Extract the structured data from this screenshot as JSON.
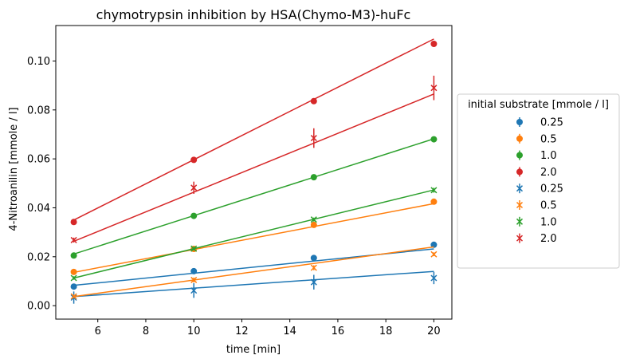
{
  "chart_data": {
    "type": "scatter",
    "title": "chymotrypsin inhibition by HSA(Chymo-M3)-huFc",
    "xlabel": "time [min]",
    "ylabel": "4-Nitroanilin [mmole / l]",
    "xlim": [
      4.25,
      20.75
    ],
    "ylim": [
      -0.0055,
      0.1145
    ],
    "x_ticks": [
      6,
      8,
      10,
      12,
      14,
      16,
      18,
      20
    ],
    "y_ticks": [
      0.0,
      0.02,
      0.04,
      0.06,
      0.08,
      0.1
    ],
    "x_tick_labels": [
      "6",
      "8",
      "10",
      "12",
      "14",
      "16",
      "18",
      "20"
    ],
    "y_tick_labels": [
      "0.00",
      "0.02",
      "0.04",
      "0.06",
      "0.08",
      "0.10"
    ],
    "grid": false,
    "legend": {
      "title": "initial substrate [mmole / l]",
      "placement": "outside-right"
    },
    "x": [
      5,
      10,
      15,
      20
    ],
    "series": [
      {
        "name": "0.25",
        "marker": "circle",
        "color": "#1f77b4",
        "values": [
          0.0078,
          0.0141,
          0.0195,
          0.0249
        ],
        "errors": [
          0.0006,
          0.0005,
          0.0006,
          0.0006
        ],
        "fit": [
          0.0083,
          0.0232
        ]
      },
      {
        "name": "0.5",
        "marker": "circle",
        "color": "#ff7f0e",
        "values": [
          0.0138,
          0.0232,
          0.033,
          0.0425
        ],
        "errors": [
          0.0005,
          0.0005,
          0.0006,
          0.0005
        ],
        "fit": [
          0.0136,
          0.0417
        ]
      },
      {
        "name": "1.0",
        "marker": "circle",
        "color": "#2ca02c",
        "values": [
          0.0205,
          0.0367,
          0.0525,
          0.068
        ],
        "errors": [
          0.0005,
          0.0005,
          0.0006,
          0.0006
        ],
        "fit": [
          0.0211,
          0.0682
        ]
      },
      {
        "name": "2.0",
        "marker": "circle",
        "color": "#d62728",
        "values": [
          0.0342,
          0.0596,
          0.0836,
          0.107
        ],
        "errors": [
          0.0006,
          0.0006,
          0.0006,
          0.0008
        ],
        "fit": [
          0.035,
          0.109
        ]
      },
      {
        "name": "0.25",
        "marker": "x",
        "color": "#1f77b4",
        "values": [
          0.0033,
          0.0062,
          0.0096,
          0.0113
        ],
        "errors": [
          0.0025,
          0.003,
          0.003,
          0.0025
        ],
        "fit": [
          0.0037,
          0.014
        ]
      },
      {
        "name": "0.5",
        "marker": "x",
        "color": "#ff7f0e",
        "values": [
          0.0038,
          0.0105,
          0.0155,
          0.021
        ],
        "errors": [
          0.0007,
          0.001,
          0.001,
          0.0008
        ],
        "fit": [
          0.0037,
          0.024
        ]
      },
      {
        "name": "1.0",
        "marker": "x",
        "color": "#2ca02c",
        "values": [
          0.0113,
          0.0233,
          0.0352,
          0.0472
        ],
        "errors": [
          0.0007,
          0.0007,
          0.0008,
          0.001
        ],
        "fit": [
          0.0113,
          0.0473
        ]
      },
      {
        "name": "2.0",
        "marker": "x",
        "color": "#d62728",
        "values": [
          0.0268,
          0.0482,
          0.0685,
          0.089
        ],
        "errors": [
          0.001,
          0.0025,
          0.004,
          0.005
        ],
        "fit": [
          0.0263,
          0.0865
        ]
      }
    ]
  }
}
